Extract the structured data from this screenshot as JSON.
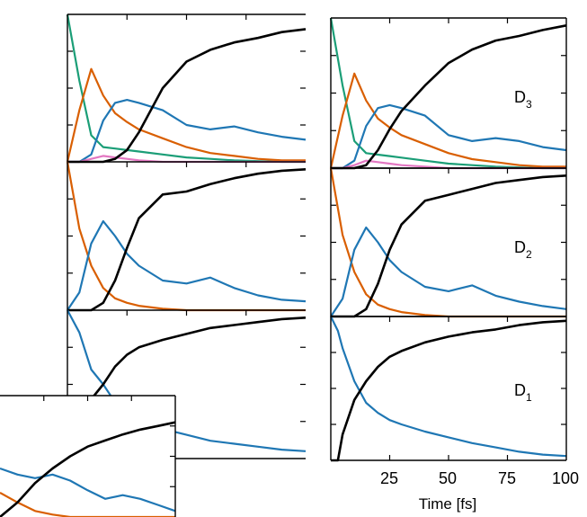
{
  "chart_data": [
    {
      "type": "line",
      "panel": "left-top",
      "title": "",
      "x": [
        0,
        5,
        10,
        15,
        20,
        25,
        30,
        40,
        50,
        60,
        70,
        80,
        90,
        100
      ],
      "series": [
        {
          "name": "green",
          "color": "#1b9e77",
          "values": [
            1.0,
            0.55,
            0.18,
            0.1,
            0.09,
            0.08,
            0.07,
            0.05,
            0.03,
            0.02,
            0.01,
            0.005,
            0.0,
            0.0
          ]
        },
        {
          "name": "orange",
          "color": "#d95f02",
          "values": [
            0.0,
            0.35,
            0.63,
            0.45,
            0.33,
            0.27,
            0.22,
            0.16,
            0.1,
            0.06,
            0.04,
            0.02,
            0.01,
            0.01
          ]
        },
        {
          "name": "blue",
          "color": "#1f77b4",
          "values": [
            0.0,
            0.0,
            0.05,
            0.28,
            0.4,
            0.42,
            0.4,
            0.35,
            0.25,
            0.22,
            0.24,
            0.2,
            0.17,
            0.15
          ]
        },
        {
          "name": "pink",
          "color": "#e377c2",
          "values": [
            0.0,
            0.0,
            0.02,
            0.04,
            0.03,
            0.02,
            0.01,
            0.0,
            0.0,
            0.0,
            0.0,
            0.0,
            0.0,
            0.0
          ]
        },
        {
          "name": "black",
          "color": "#000000",
          "values": [
            0.0,
            0.0,
            0.0,
            0.0,
            0.02,
            0.08,
            0.2,
            0.5,
            0.68,
            0.76,
            0.81,
            0.84,
            0.88,
            0.9
          ]
        }
      ]
    },
    {
      "type": "line",
      "panel": "left-middle",
      "x": [
        0,
        5,
        10,
        15,
        20,
        25,
        30,
        40,
        50,
        60,
        70,
        80,
        90,
        100
      ],
      "series": [
        {
          "name": "orange",
          "color": "#d95f02",
          "values": [
            1.0,
            0.55,
            0.3,
            0.15,
            0.08,
            0.05,
            0.03,
            0.01,
            0.0,
            0.0,
            0.0,
            0.0,
            0.0,
            0.0
          ]
        },
        {
          "name": "blue",
          "color": "#1f77b4",
          "values": [
            0.0,
            0.12,
            0.45,
            0.6,
            0.5,
            0.38,
            0.3,
            0.2,
            0.18,
            0.22,
            0.15,
            0.1,
            0.07,
            0.06
          ]
        },
        {
          "name": "black",
          "color": "#000000",
          "values": [
            0.0,
            0.0,
            0.0,
            0.05,
            0.2,
            0.42,
            0.62,
            0.78,
            0.8,
            0.85,
            0.89,
            0.92,
            0.94,
            0.95
          ]
        }
      ]
    },
    {
      "type": "line",
      "panel": "left-bottom",
      "x": [
        0,
        5,
        10,
        15,
        20,
        25,
        30,
        40,
        50,
        60,
        70,
        80,
        90,
        100
      ],
      "series": [
        {
          "name": "blue",
          "color": "#1f77b4",
          "values": [
            1.0,
            0.85,
            0.6,
            0.5,
            0.38,
            0.3,
            0.25,
            0.2,
            0.16,
            0.12,
            0.1,
            0.08,
            0.06,
            0.05
          ]
        },
        {
          "name": "black",
          "color": "#000000",
          "values": [
            0.0,
            0.15,
            0.4,
            0.5,
            0.62,
            0.7,
            0.75,
            0.8,
            0.84,
            0.88,
            0.9,
            0.92,
            0.94,
            0.95
          ]
        }
      ]
    },
    {
      "type": "line",
      "panel": "right-top",
      "state_label": {
        "main": "D",
        "sub": "3"
      },
      "x": [
        0,
        5,
        10,
        15,
        20,
        25,
        30,
        40,
        50,
        60,
        70,
        80,
        90,
        100
      ],
      "series": [
        {
          "name": "green",
          "color": "#1b9e77",
          "values": [
            1.0,
            0.55,
            0.18,
            0.1,
            0.09,
            0.08,
            0.07,
            0.05,
            0.03,
            0.02,
            0.01,
            0.005,
            0.0,
            0.0
          ]
        },
        {
          "name": "orange",
          "color": "#d95f02",
          "values": [
            0.0,
            0.35,
            0.63,
            0.45,
            0.33,
            0.27,
            0.22,
            0.16,
            0.1,
            0.06,
            0.04,
            0.02,
            0.01,
            0.01
          ]
        },
        {
          "name": "blue",
          "color": "#1f77b4",
          "values": [
            0.0,
            0.0,
            0.05,
            0.28,
            0.4,
            0.42,
            0.4,
            0.35,
            0.22,
            0.18,
            0.2,
            0.18,
            0.14,
            0.12
          ]
        },
        {
          "name": "pink",
          "color": "#e377c2",
          "values": [
            0.0,
            0.0,
            0.02,
            0.05,
            0.04,
            0.03,
            0.02,
            0.01,
            0.0,
            0.0,
            0.0,
            0.0,
            0.0,
            0.0
          ]
        },
        {
          "name": "black",
          "color": "#000000",
          "values": [
            0.0,
            0.0,
            0.0,
            0.02,
            0.12,
            0.26,
            0.38,
            0.55,
            0.7,
            0.79,
            0.85,
            0.88,
            0.92,
            0.95
          ]
        }
      ]
    },
    {
      "type": "line",
      "panel": "right-middle",
      "state_label": {
        "main": "D",
        "sub": "2"
      },
      "x": [
        0,
        5,
        10,
        15,
        20,
        25,
        30,
        40,
        50,
        60,
        70,
        80,
        90,
        100
      ],
      "series": [
        {
          "name": "orange",
          "color": "#d95f02",
          "values": [
            1.0,
            0.55,
            0.3,
            0.15,
            0.08,
            0.05,
            0.03,
            0.01,
            0.0,
            0.0,
            0.0,
            0.0,
            0.0,
            0.0
          ]
        },
        {
          "name": "blue",
          "color": "#1f77b4",
          "values": [
            0.0,
            0.12,
            0.45,
            0.6,
            0.5,
            0.38,
            0.3,
            0.2,
            0.17,
            0.21,
            0.14,
            0.1,
            0.07,
            0.05
          ]
        },
        {
          "name": "black",
          "color": "#000000",
          "values": [
            0.0,
            0.0,
            0.0,
            0.05,
            0.22,
            0.45,
            0.62,
            0.78,
            0.82,
            0.86,
            0.9,
            0.92,
            0.94,
            0.95
          ]
        }
      ]
    },
    {
      "type": "line",
      "panel": "right-bottom",
      "state_label": {
        "main": "D",
        "sub": "1"
      },
      "xlabel": "Time [fs]",
      "xticks": [
        "25",
        "50",
        "75",
        "100"
      ],
      "x": [
        0,
        3,
        5,
        10,
        15,
        20,
        25,
        30,
        40,
        50,
        60,
        70,
        80,
        90,
        100
      ],
      "series": [
        {
          "name": "blue",
          "color": "#1f77b4",
          "values": [
            1.0,
            0.9,
            0.78,
            0.55,
            0.4,
            0.33,
            0.28,
            0.25,
            0.2,
            0.16,
            0.12,
            0.09,
            0.06,
            0.04,
            0.03
          ]
        },
        {
          "name": "black",
          "color": "#000000",
          "values": [
            0.0,
            0.0,
            0.18,
            0.42,
            0.55,
            0.65,
            0.72,
            0.76,
            0.82,
            0.86,
            0.89,
            0.91,
            0.94,
            0.96,
            0.97
          ]
        }
      ]
    },
    {
      "type": "line",
      "panel": "inset-bottom-left",
      "x": [
        0,
        10,
        20,
        30,
        40,
        50,
        60,
        70,
        80,
        90,
        100
      ],
      "series": [
        {
          "name": "orange",
          "color": "#d95f02",
          "values": [
            0.2,
            0.12,
            0.05,
            0.02,
            0.0,
            0.0,
            0.0,
            0.0,
            0.0,
            0.0,
            0.0
          ]
        },
        {
          "name": "blue",
          "color": "#1f77b4",
          "values": [
            0.4,
            0.35,
            0.32,
            0.35,
            0.3,
            0.22,
            0.15,
            0.18,
            0.15,
            0.1,
            0.05
          ]
        },
        {
          "name": "black",
          "color": "#000000",
          "values": [
            0.0,
            0.12,
            0.28,
            0.4,
            0.5,
            0.58,
            0.63,
            0.68,
            0.72,
            0.75,
            0.78
          ]
        }
      ]
    }
  ]
}
